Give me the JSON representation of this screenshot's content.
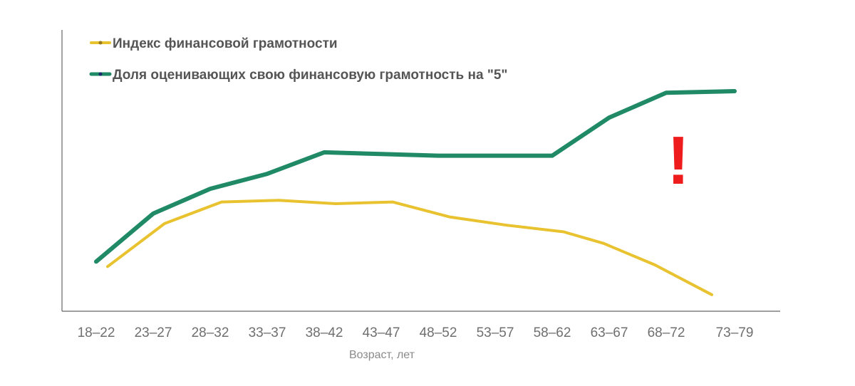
{
  "chart_data": {
    "type": "line",
    "categories": [
      "18–22",
      "23–27",
      "28–32",
      "33–37",
      "38–42",
      "43–47",
      "48–52",
      "53–57",
      "58–62",
      "63–67",
      "68–72",
      "73–79"
    ],
    "x": [
      20,
      25,
      30,
      35,
      40,
      45,
      50,
      55,
      60,
      65,
      70,
      76
    ],
    "series": [
      {
        "name": "Индекс финансовой грамотности",
        "color": "#e8c22f",
        "x": [
          21,
          26,
          31,
          36,
          41,
          46,
          51,
          56,
          61,
          64.5,
          69,
          74
        ],
        "values": [
          27,
          53,
          66,
          67,
          65,
          66,
          57,
          52,
          48,
          41,
          28,
          10
        ]
      },
      {
        "name": "Доля оценивающих свою финансовую грамотность на \"5\"",
        "color": "#1f8a65",
        "x": [
          20,
          25,
          30,
          35,
          40,
          45,
          50,
          55,
          60,
          65,
          70,
          76
        ],
        "values": [
          30,
          59,
          74,
          83,
          96,
          95,
          94,
          94,
          94,
          117,
          132,
          133
        ]
      }
    ],
    "xlabel": "Возраст, лет",
    "ylabel": "",
    "ylim": [
      0,
      170
    ],
    "xlim": [
      17,
      80
    ],
    "grid": false,
    "legend": "top-left",
    "annotation": "!",
    "annotation_color": "#ee1c1c"
  }
}
